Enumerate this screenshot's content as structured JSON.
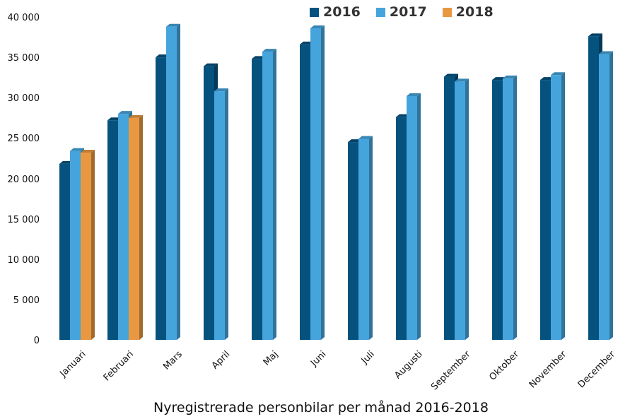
{
  "chart_data": {
    "type": "bar",
    "title": "Nyregistrerade personbilar per månad 2016-2018",
    "xlabel": "",
    "ylabel": "",
    "ylim": [
      0,
      40000
    ],
    "yticks": [
      0,
      5000,
      10000,
      15000,
      20000,
      25000,
      30000,
      35000,
      40000
    ],
    "ytick_labels": [
      "0",
      "5 000",
      "10 000",
      "15 000",
      "20 000",
      "25 000",
      "30 000",
      "35 000",
      "40 000"
    ],
    "grid": false,
    "legend_position": "top",
    "style": "3d-column",
    "categories": [
      "Januari",
      "Februari",
      "Mars",
      "April",
      "Maj",
      "Juni",
      "Juli",
      "Augusti",
      "September",
      "Oktober",
      "November",
      "December"
    ],
    "series": [
      {
        "name": "2016",
        "color": "#06527F",
        "values": [
          21800,
          27200,
          35000,
          33900,
          34800,
          36600,
          24500,
          27600,
          32600,
          32200,
          32200,
          37600
        ]
      },
      {
        "name": "2017",
        "color": "#46A4DC",
        "values": [
          23400,
          28000,
          38800,
          30800,
          35700,
          38600,
          24900,
          30200,
          32000,
          32400,
          32800,
          35400
        ]
      },
      {
        "name": "2018",
        "color": "#E99842",
        "values": [
          23200,
          27500,
          null,
          null,
          null,
          null,
          null,
          null,
          null,
          null,
          null,
          null
        ]
      }
    ]
  },
  "legend": {
    "items": [
      {
        "label": "2016",
        "color": "#06527F"
      },
      {
        "label": "2017",
        "color": "#46A4DC"
      },
      {
        "label": "2018",
        "color": "#E99842"
      }
    ]
  }
}
